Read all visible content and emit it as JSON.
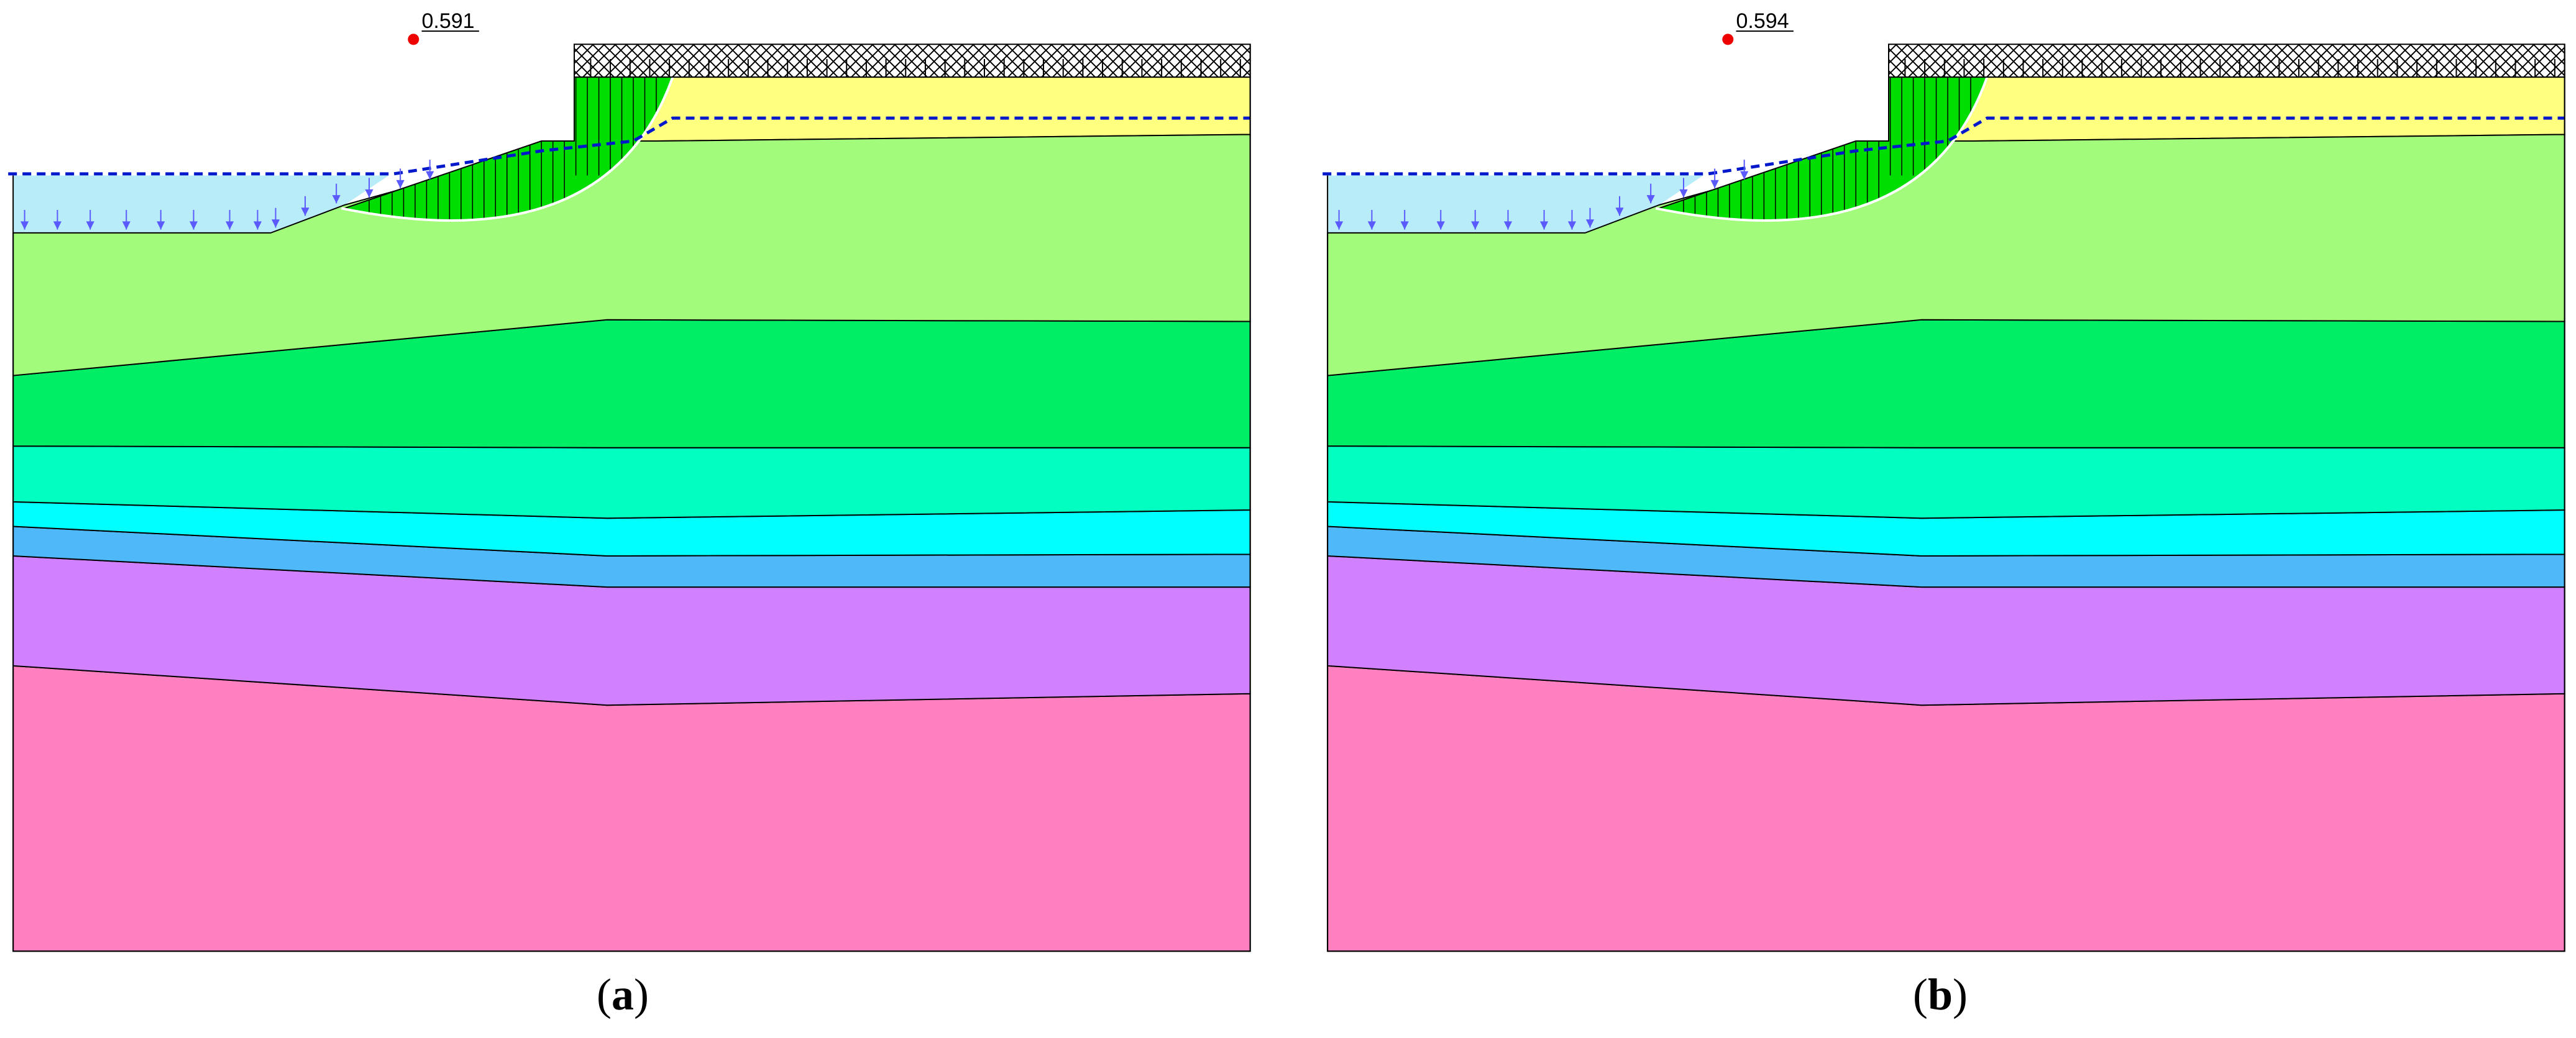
{
  "panels": [
    {
      "caption_letter": "a",
      "factor_of_safety": "0.591"
    },
    {
      "caption_letter": "b",
      "factor_of_safety": "0.594"
    }
  ],
  "colors": {
    "water": "#b8ecf9",
    "fill_yellow": "#ffff80",
    "layer_light_green": "#a2fb7a",
    "layer_green": "#00ee66",
    "layer_aqua_green": "#00ffc0",
    "layer_cyan": "#00ffff",
    "layer_blue": "#4fb8f8",
    "layer_purple": "#d180ff",
    "layer_pink": "#ff80c0",
    "slip_mass": "#00dd00",
    "water_table": "#0018cc",
    "surcharge": "#000000",
    "slip_center": "#ee0000"
  },
  "icons": [
    "water-load-arrow-icon",
    "slip-center-dot-icon",
    "surcharge-hatch-icon"
  ]
}
